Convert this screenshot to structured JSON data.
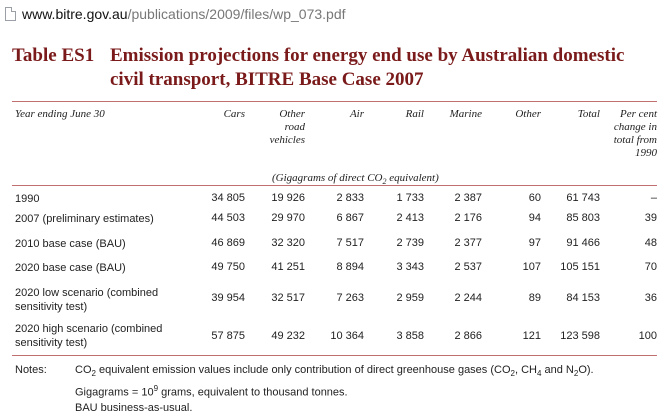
{
  "browser": {
    "url_host": "www.bitre.gov.au",
    "url_path": "/publications/2009/files/wp_073.pdf"
  },
  "table": {
    "label": "Table ES1",
    "title": "Emission projections for energy end use by Australian domestic civil transport, BITRE Base Case 2007",
    "columns": {
      "year": "Year ending June 30",
      "cars": "Cars",
      "other_road": [
        "Other",
        "road",
        "vehicles"
      ],
      "air": "Air",
      "rail": "Rail",
      "marine": "Marine",
      "other": "Other",
      "total": "Total",
      "pct": [
        "Per cent",
        "change in",
        "total from",
        "1990"
      ]
    },
    "unit_prefix": "(Gigagrams of direct CO",
    "unit_sub": "2",
    "unit_suffix": " equivalent)",
    "rows": [
      {
        "label": "1990",
        "cars": "34 805",
        "other_road": "19 926",
        "air": "2 833",
        "rail": "1 733",
        "marine": "2 387",
        "other": "60",
        "total": "61 743",
        "pct": "–"
      },
      {
        "label": "2007 (preliminary estimates)",
        "cars": "44 503",
        "other_road": "29 970",
        "air": "6 867",
        "rail": "2 413",
        "marine": "2 176",
        "other": "94",
        "total": "85 803",
        "pct": "39"
      },
      {
        "label": "2010 base case (BAU)",
        "cars": "46 869",
        "other_road": "32 320",
        "air": "7 517",
        "rail": "2 739",
        "marine": "2 377",
        "other": "97",
        "total": "91 466",
        "pct": "48"
      },
      {
        "label": "2020 base case (BAU)",
        "cars": "49 750",
        "other_road": "41 251",
        "air": "8 894",
        "rail": "3 343",
        "marine": "2 537",
        "other": "107",
        "total": "105 151",
        "pct": "70"
      },
      {
        "label": "2020 low scenario (combined sensitivity test)",
        "cars": "39 954",
        "other_road": "32 517",
        "air": "7 263",
        "rail": "2 959",
        "marine": "2 244",
        "other": "89",
        "total": "84 153",
        "pct": "36"
      },
      {
        "label": "2020 high scenario (combined sensitivity test)",
        "cars": "57 875",
        "other_road": "49 232",
        "air": "10 364",
        "rail": "3 858",
        "marine": "2 866",
        "other": "121",
        "total": "123 598",
        "pct": "100"
      }
    ]
  },
  "notes": {
    "label": "Notes:",
    "line1": {
      "a": "CO",
      "a_sub": "2",
      "b": " equivalent emission values include only contribution of direct greenhouse gases (CO",
      "b_sub": "2",
      "c": ", CH",
      "c_sub": "4",
      "d": " and N",
      "d_sub": "2",
      "e": "O)."
    },
    "line2": {
      "a": "Gigagrams = 10",
      "a_sup": "9",
      "b": " grams, equivalent to thousand tonnes."
    },
    "line3": "BAU business-as-usual."
  }
}
